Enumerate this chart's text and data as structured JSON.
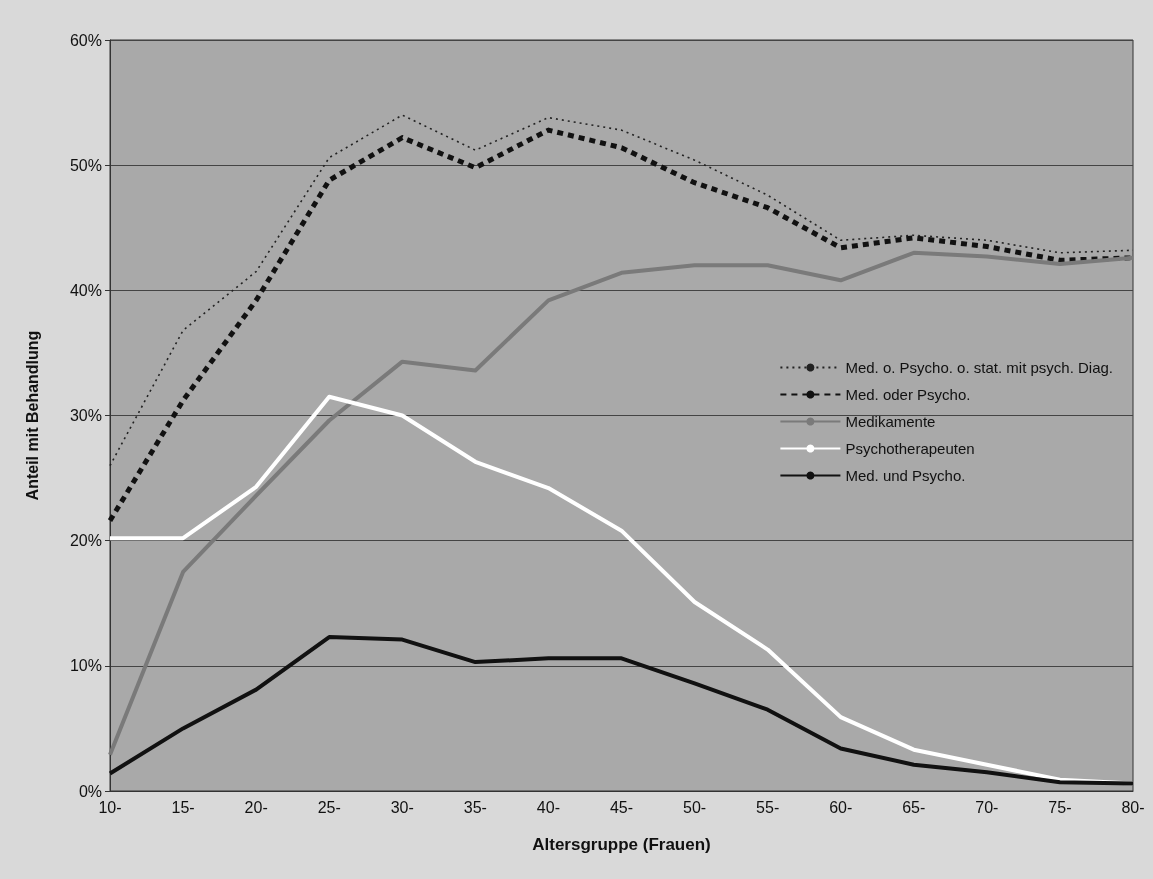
{
  "chart_data": {
    "type": "line",
    "xlabel": "Altersgruppe (Frauen)",
    "ylabel": "Anteil mit Behandlung",
    "categories": [
      "10-",
      "15-",
      "20-",
      "25-",
      "30-",
      "35-",
      "40-",
      "45-",
      "50-",
      "55-",
      "60-",
      "65-",
      "70-",
      "75-",
      "80-"
    ],
    "series": [
      {
        "name": "Med. o. Psycho. o. stat. mit psych. Diag.",
        "color": "#222222",
        "line_style": "dotted",
        "values": [
          26.0,
          36.8,
          41.5,
          50.6,
          54.0,
          51.2,
          53.8,
          52.8,
          50.4,
          47.6,
          44.0,
          44.4,
          44.0,
          43.0,
          43.2
        ]
      },
      {
        "name": "Med. oder Psycho.",
        "color": "#111111",
        "line_style": "dashed",
        "values": [
          21.6,
          31.2,
          39.2,
          48.8,
          52.2,
          49.8,
          52.8,
          51.4,
          48.6,
          46.6,
          43.4,
          44.2,
          43.5,
          42.4,
          42.6
        ]
      },
      {
        "name": "Medikamente",
        "color": "#7a7a7a",
        "line_style": "solid",
        "values": [
          2.9,
          17.5,
          23.6,
          29.6,
          34.3,
          33.6,
          39.2,
          41.4,
          42.0,
          42.0,
          40.8,
          43.0,
          42.7,
          42.1,
          42.6
        ]
      },
      {
        "name": "Psychotherapeuten",
        "color": "#ffffff",
        "line_style": "solid",
        "values": [
          20.2,
          20.2,
          24.3,
          31.5,
          30.0,
          26.3,
          24.2,
          20.8,
          15.1,
          11.3,
          5.9,
          3.3,
          2.1,
          0.9,
          0.6
        ]
      },
      {
        "name": "Med. und Psycho.",
        "color": "#111111",
        "line_style": "solid",
        "values": [
          1.4,
          5.0,
          8.1,
          12.3,
          12.1,
          10.3,
          10.6,
          10.6,
          8.6,
          6.5,
          3.4,
          2.1,
          1.5,
          0.7,
          0.6
        ]
      }
    ],
    "ylim": [
      0,
      60
    ],
    "yticks": [
      {
        "value": 0,
        "label": "0%"
      },
      {
        "value": 10,
        "label": "10%"
      },
      {
        "value": 20,
        "label": "20%"
      },
      {
        "value": 30,
        "label": "30%"
      },
      {
        "value": 40,
        "label": "40%"
      },
      {
        "value": 50,
        "label": "50%"
      },
      {
        "value": 60,
        "label": "60%"
      }
    ],
    "grid": "y",
    "legend": "right",
    "marker": "none"
  }
}
